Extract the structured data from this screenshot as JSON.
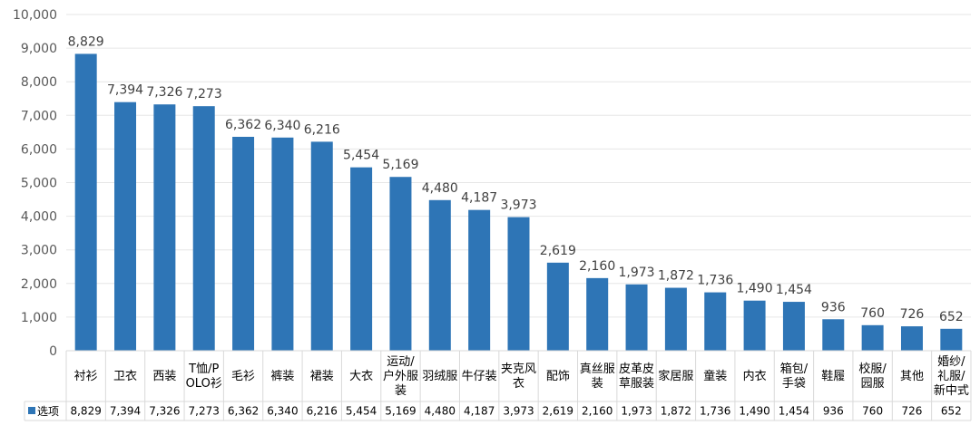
{
  "chart_data": {
    "type": "bar",
    "title": "",
    "xlabel": "",
    "ylabel": "",
    "ylim": [
      0,
      10000
    ],
    "yticks": [
      0,
      1000,
      2000,
      3000,
      4000,
      5000,
      6000,
      7000,
      8000,
      9000,
      10000
    ],
    "ytick_labels": [
      "0",
      "1,000",
      "2,000",
      "3,000",
      "4,000",
      "5,000",
      "6,000",
      "7,000",
      "8,000",
      "9,000",
      "10,000"
    ],
    "grid": true,
    "legend": "data-table-left",
    "categories": [
      [
        "衬衫"
      ],
      [
        "卫衣"
      ],
      [
        "西装"
      ],
      [
        "T恤/P",
        "OLO衫"
      ],
      [
        "毛衫"
      ],
      [
        "裤装"
      ],
      [
        "裙装"
      ],
      [
        "大衣"
      ],
      [
        "运动/",
        "户外服",
        "装"
      ],
      [
        "羽绒服"
      ],
      [
        "牛仔装"
      ],
      [
        "夹克风",
        "衣"
      ],
      [
        "配饰"
      ],
      [
        "真丝服",
        "装"
      ],
      [
        "皮革皮",
        "草服装"
      ],
      [
        "家居服"
      ],
      [
        "童装"
      ],
      [
        "内衣"
      ],
      [
        "箱包/",
        "手袋"
      ],
      [
        "鞋履"
      ],
      [
        "校服/",
        "园服"
      ],
      [
        "其他"
      ],
      [
        "婚纱/",
        "礼服/",
        "新中式"
      ]
    ],
    "series": [
      {
        "name": "选项",
        "color": "#2E75B6",
        "values": [
          8829,
          7394,
          7326,
          7273,
          6362,
          6340,
          6216,
          5454,
          5169,
          4480,
          4187,
          3973,
          2619,
          2160,
          1973,
          1872,
          1736,
          1490,
          1454,
          936,
          760,
          726,
          652
        ],
        "labels": [
          "8,829",
          "7,394",
          "7,326",
          "7,273",
          "6,362",
          "6,340",
          "6,216",
          "5,454",
          "5,169",
          "4,480",
          "4,187",
          "3,973",
          "2,619",
          "2,160",
          "1,973",
          "1,872",
          "1,736",
          "1,490",
          "1,454",
          "936",
          "760",
          "726",
          "652"
        ]
      }
    ]
  }
}
